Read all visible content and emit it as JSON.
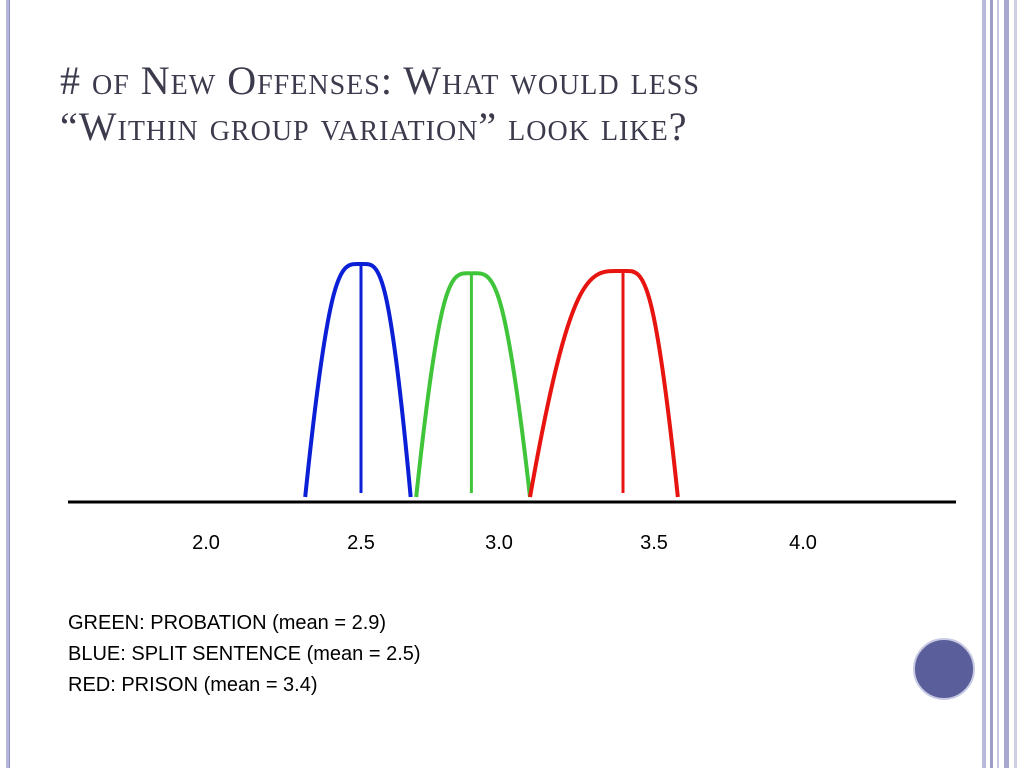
{
  "slide": {
    "title_line1": "# of New Offenses: What would less",
    "title_line2": "“Within group variation” look like?"
  },
  "chart_data": {
    "type": "line",
    "x_tick_labels": [
      "2.0",
      "2.5",
      "3.0",
      "3.5",
      "4.0"
    ],
    "x_ticks": [
      2.0,
      2.5,
      3.0,
      3.5,
      4.0
    ],
    "series": [
      {
        "key": "blue",
        "color": "#0a1fd6",
        "mean": 2.5,
        "x_start": 2.32,
        "x_end": 2.68,
        "peak": 1.0
      },
      {
        "key": "green",
        "color": "#3fc43a",
        "mean": 2.9,
        "x_start": 2.7,
        "x_end": 3.1,
        "peak": 0.96
      },
      {
        "key": "red",
        "color": "#e8140f",
        "mean": 3.4,
        "x_start": 3.1,
        "x_end": 3.58,
        "peak": 0.97
      }
    ]
  },
  "legend": {
    "green": "GREEN: PROBATION (mean = 2.9)",
    "blue": "BLUE: SPLIT SENTENCE (mean = 2.5)",
    "red": "RED: PRISON (mean = 3.4)"
  },
  "colors": {
    "accent": "#5a5e9a",
    "border": "#b6b6d8"
  }
}
